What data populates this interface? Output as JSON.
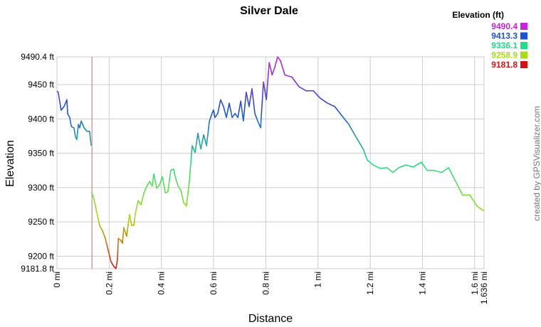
{
  "chart_data": {
    "type": "line",
    "title": "Silver Dale",
    "x_label": "Distance",
    "y_label": "Elevation",
    "credit": "created by GPSVisualizer.com",
    "legend_title": "Elevation (ft)",
    "legend": [
      {
        "value": 9490.4,
        "color": "#cc22dd"
      },
      {
        "value": 9413.3,
        "color": "#1f4fd6"
      },
      {
        "value": 9336.1,
        "color": "#22dd88"
      },
      {
        "value": 9258.9,
        "color": "#aadd11"
      },
      {
        "value": 9181.8,
        "color": "#dd1111"
      }
    ],
    "cursor_x": 0.134,
    "cursor_color": "#e06060",
    "grid": true,
    "xlim": [
      0,
      1.636
    ],
    "ylim": [
      9181.8,
      9490.4
    ],
    "xticks": [
      {
        "value": 0,
        "label": "0 mi"
      },
      {
        "value": 0.2,
        "label": "0.2 mi"
      },
      {
        "value": 0.4,
        "label": "0.4 mi"
      },
      {
        "value": 0.6,
        "label": "0.6 mi"
      },
      {
        "value": 0.8,
        "label": "0.8 mi"
      },
      {
        "value": 1,
        "label": "1 mi"
      },
      {
        "value": 1.2,
        "label": "1.2 mi"
      },
      {
        "value": 1.4,
        "label": "1.4 mi"
      },
      {
        "value": 1.6,
        "label": "1.6 mi"
      },
      {
        "value": 1.636,
        "label": "1.636 mi"
      }
    ],
    "yticks": [
      {
        "value": 9181.8,
        "label": "9181.8 ft"
      },
      {
        "value": 9200,
        "label": "9200 ft"
      },
      {
        "value": 9250,
        "label": "9250 ft"
      },
      {
        "value": 9300,
        "label": "9300 ft"
      },
      {
        "value": 9350,
        "label": "9350 ft"
      },
      {
        "value": 9400,
        "label": "9400 ft"
      },
      {
        "value": 9450,
        "label": "9450 ft"
      },
      {
        "value": 9490.4,
        "label": "9490.4 ft"
      }
    ],
    "x": [
      0,
      0.005,
      0.016,
      0.027,
      0.038,
      0.041,
      0.049,
      0.055,
      0.065,
      0.071,
      0.076,
      0.082,
      0.087,
      0.093,
      0.104,
      0.115,
      0.125,
      0.131,
      0.131,
      0.132,
      0.142,
      0.153,
      0.164,
      0.175,
      0.185,
      0.196,
      0.207,
      0.218,
      0.226,
      0.232,
      0.235,
      0.245,
      0.251,
      0.256,
      0.267,
      0.278,
      0.286,
      0.295,
      0.3,
      0.311,
      0.322,
      0.333,
      0.344,
      0.355,
      0.365,
      0.371,
      0.382,
      0.393,
      0.404,
      0.415,
      0.425,
      0.436,
      0.447,
      0.453,
      0.464,
      0.475,
      0.485,
      0.496,
      0.507,
      0.518,
      0.529,
      0.54,
      0.551,
      0.562,
      0.573,
      0.584,
      0.594,
      0.6,
      0.605,
      0.616,
      0.627,
      0.638,
      0.649,
      0.66,
      0.671,
      0.682,
      0.693,
      0.704,
      0.714,
      0.725,
      0.736,
      0.747,
      0.758,
      0.769,
      0.78,
      0.791,
      0.802,
      0.813,
      0.824,
      0.834,
      0.845,
      0.856,
      0.873,
      0.9,
      0.927,
      0.954,
      0.982,
      1.009,
      1.036,
      1.064,
      1.091,
      1.118,
      1.145,
      1.173,
      1.189,
      1.211,
      1.238,
      1.265,
      1.287,
      1.309,
      1.336,
      1.364,
      1.396,
      1.418,
      1.445,
      1.473,
      1.5,
      1.527,
      1.554,
      1.582,
      1.609,
      1.636
    ],
    "values": [
      9440.7,
      9438.6,
      9412.7,
      9418,
      9428,
      9407.5,
      9402,
      9389,
      9387,
      9374,
      9370,
      9392,
      9387,
      9397,
      9387,
      9382,
      9382,
      9361,
      null,
      9294,
      9283,
      9263,
      9244,
      9237,
      9226,
      9209,
      9192,
      9185,
      9182,
      9196,
      9226,
      9223,
      9219,
      9242,
      9229,
      9261,
      9245,
      9245,
      9262,
      9281,
      9275,
      9292,
      9302,
      9309,
      9302,
      9320,
      9299,
      9304,
      9316,
      9292,
      9294,
      9325,
      9327,
      9316,
      9302,
      9296,
      9278,
      9273,
      9309,
      9361,
      9351,
      9379,
      9356,
      9377,
      9361,
      9397,
      9408,
      9413,
      9402,
      9408,
      9428,
      9418,
      9402,
      9423,
      9402,
      9408,
      9402,
      9426,
      9397,
      9439,
      9418,
      9444,
      9408,
      9397,
      9387,
      9454,
      9428,
      9482,
      9464,
      9475,
      9490.4,
      9485,
      9464,
      9461,
      9447,
      9441,
      9441,
      9430,
      9423,
      9418,
      9405,
      9392,
      9374,
      9356,
      9340,
      9333,
      9328,
      9329,
      9322,
      9329,
      9333,
      9330,
      9337,
      9325,
      9325,
      9322,
      9329,
      9309,
      9289,
      9289,
      9273,
      9266
    ]
  }
}
